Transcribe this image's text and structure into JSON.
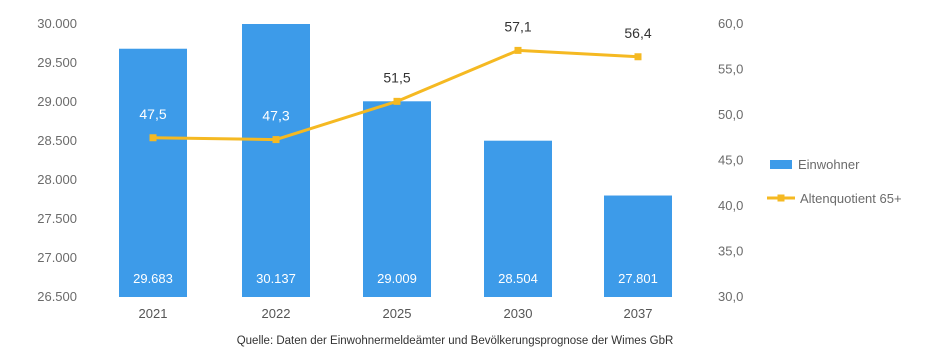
{
  "chart_data": {
    "type": "bar",
    "categories": [
      "2021",
      "2022",
      "2025",
      "2030",
      "2037"
    ],
    "series": [
      {
        "name": "Einwohner",
        "type": "bar",
        "axis": "left",
        "values": [
          29683,
          30137,
          29009,
          28504,
          27801
        ],
        "labels": [
          "29.683",
          "30.137",
          "29.009",
          "28.504",
          "27.801"
        ],
        "color": "#3d9be9"
      },
      {
        "name": "Altenquotient 65+",
        "type": "line",
        "axis": "right",
        "values": [
          47.5,
          47.3,
          51.5,
          57.1,
          56.4
        ],
        "labels": [
          "47,5",
          "47,3",
          "51,5",
          "57,1",
          "56,4"
        ],
        "color": "#f5b922"
      }
    ],
    "y_left": {
      "min": 26500,
      "max": 30000,
      "ticks": [
        26500,
        27000,
        27500,
        28000,
        28500,
        29000,
        29500,
        30000
      ],
      "tick_labels": [
        "26.500",
        "27.000",
        "27.500",
        "28.000",
        "28.500",
        "29.000",
        "29.500",
        "30.000"
      ]
    },
    "y_right": {
      "min": 30,
      "max": 60,
      "ticks": [
        30,
        35,
        40,
        45,
        50,
        55,
        60
      ],
      "tick_labels": [
        "30,0",
        "35,0",
        "40,0",
        "45,0",
        "50,0",
        "55,0",
        "60,0"
      ]
    },
    "grid": false,
    "legend_position": "right",
    "source_note": "Quelle: Daten der Einwohnermeldeämter und Bevölkerungsprognose der Wimes GbR"
  }
}
